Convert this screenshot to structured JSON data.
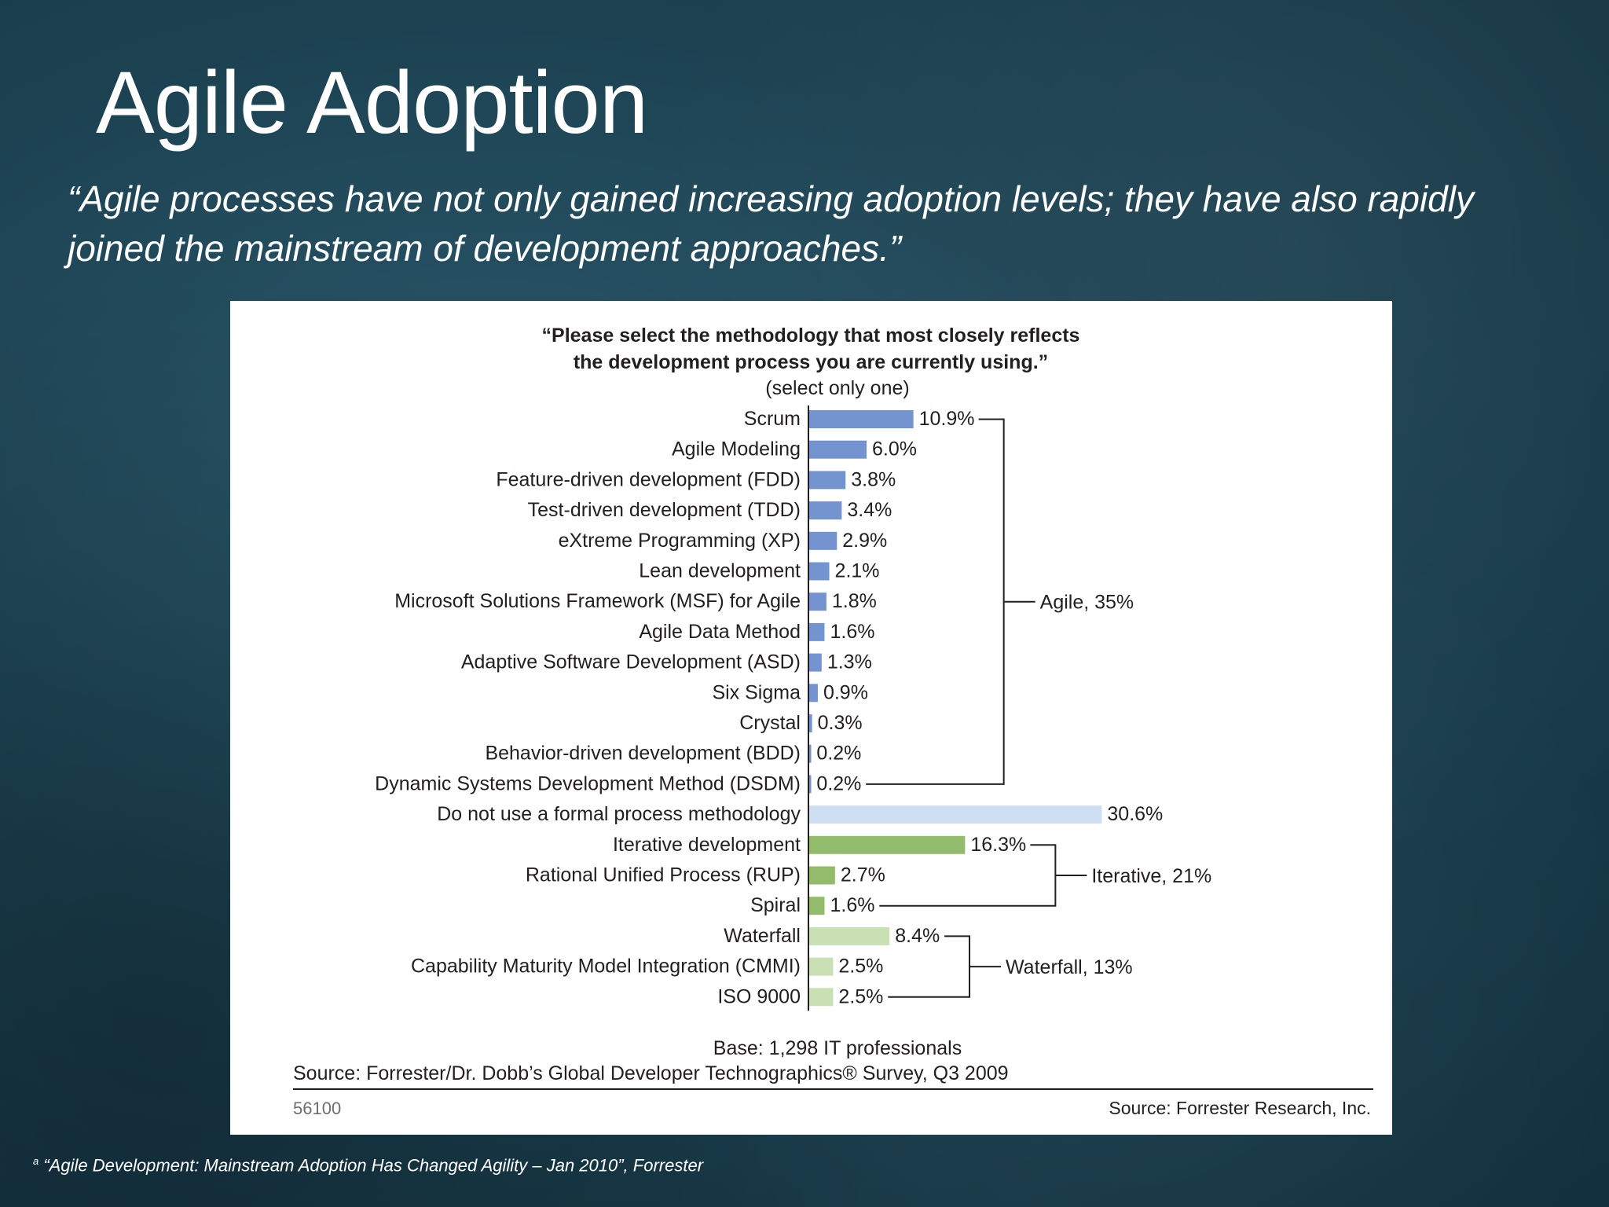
{
  "slide": {
    "title": "Agile Adoption",
    "quote": "“Agile processes have not only gained increasing adoption levels; they have also rapidly joined the mainstream of development approaches.”",
    "footnote_marker": "a",
    "footnote": " “Agile Development:  Mainstream Adoption Has Changed Agility – Jan 2010”, Forrester"
  },
  "chart_data": {
    "type": "bar",
    "orientation": "horizontal",
    "title_lines": [
      "“Please select the methodology that most closely reflects",
      "the development process you are currently using.”"
    ],
    "subtitle": "(select only one)",
    "unit": "%",
    "categories": [
      "Scrum",
      "Agile Modeling",
      "Feature-driven development (FDD)",
      "Test-driven development (TDD)",
      "eXtreme Programming (XP)",
      "Lean development",
      "Microsoft Solutions Framework (MSF) for Agile",
      "Agile Data Method",
      "Adaptive Software Development (ASD)",
      "Six Sigma",
      "Crystal",
      "Behavior-driven development (BDD)",
      "Dynamic Systems Development Method (DSDM)",
      "Do not use a formal process methodology",
      "Iterative development",
      "Rational Unified Process (RUP)",
      "Spiral",
      "Waterfall",
      "Capability Maturity Model Integration (CMMI)",
      "ISO 9000"
    ],
    "values": [
      10.9,
      6.0,
      3.8,
      3.4,
      2.9,
      2.1,
      1.8,
      1.6,
      1.3,
      0.9,
      0.3,
      0.2,
      0.2,
      30.6,
      16.3,
      2.7,
      1.6,
      8.4,
      2.5,
      2.5
    ],
    "value_labels": [
      "10.9%",
      "6.0%",
      "3.8%",
      "3.4%",
      "2.9%",
      "2.1%",
      "1.8%",
      "1.6%",
      "1.3%",
      "0.9%",
      "0.3%",
      "0.2%",
      "0.2%",
      "30.6%",
      "16.3%",
      "2.7%",
      "1.6%",
      "8.4%",
      "2.5%",
      "2.5%"
    ],
    "colors": {
      "agile": "#7494cf",
      "none": "#cfdff3",
      "iterative": "#93bb6c",
      "waterfall": "#c9dfb4",
      "axis": "#231f20",
      "text": "#231f20"
    },
    "bar_groups": [
      "agile",
      "agile",
      "agile",
      "agile",
      "agile",
      "agile",
      "agile",
      "agile",
      "agile",
      "agile",
      "agile",
      "agile",
      "agile",
      "none",
      "iterative",
      "iterative",
      "iterative",
      "waterfall",
      "waterfall",
      "waterfall"
    ],
    "brackets": [
      {
        "label": "Agile, 35%",
        "first": 0,
        "last": 12
      },
      {
        "label": "Iterative, 21%",
        "first": 14,
        "last": 16
      },
      {
        "label": "Waterfall, 13%",
        "first": 17,
        "last": 19
      }
    ],
    "base_note": "Base: 1,298 IT professionals",
    "source_line": "Source: Forrester/Dr. Dobb’s Global Developer Technographics® Survey, Q3 2009",
    "figure_id": "56100",
    "source_credit": "Source: Forrester Research, Inc."
  }
}
